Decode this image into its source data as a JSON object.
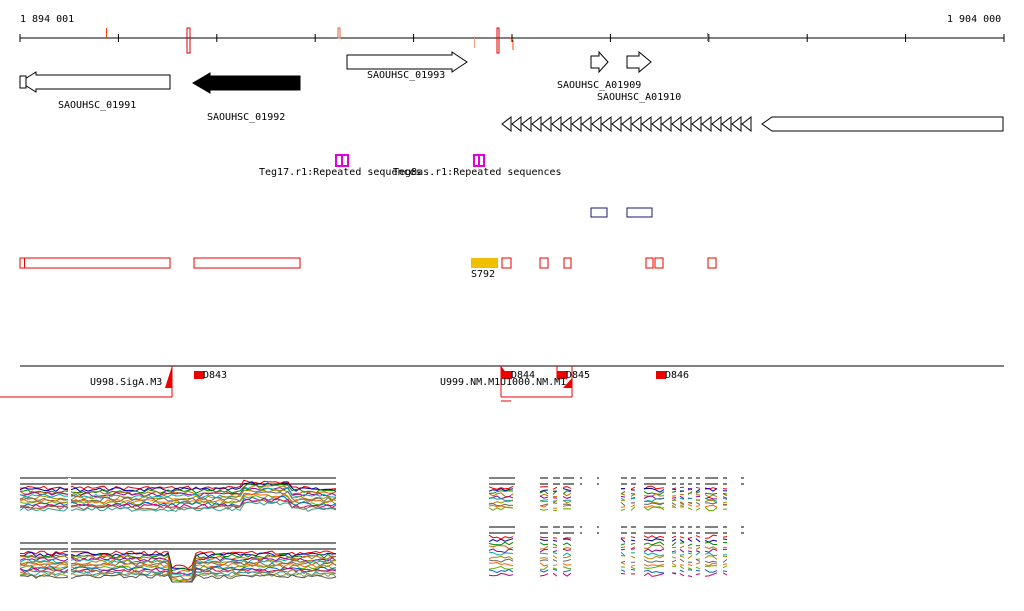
{
  "ruler": {
    "start_label": "1 894 001",
    "end_label": "1 904 000"
  },
  "genes": {
    "sa01991": "SAOUHSC_01991",
    "sa01992": "SAOUHSC_01992",
    "sa01993": "SAOUHSC_01993",
    "a01909": "SAOUHSC_A01909",
    "a01910": "SAOUHSC_A01910"
  },
  "repeats": {
    "teg17": "Teg17.r1:Repeated sequences",
    "teg8": "Teg8as.r1:Repeated sequences"
  },
  "segments": {
    "s792": "S792"
  },
  "promoters": {
    "d843": "D843",
    "d844": "D844",
    "d845": "D845",
    "d846": "D846",
    "u998": "U998.SigA.M3",
    "u999": "U999.NM.M1",
    "u1000": "U1000.NM.M1"
  },
  "colors": {
    "axis": "#000000",
    "feature_red": "#ff0000",
    "repeat_magenta": "#e000e0",
    "segment_gold": "#f0c000",
    "blue_box": "#1a1a6e",
    "gene_black": "#000000"
  }
}
